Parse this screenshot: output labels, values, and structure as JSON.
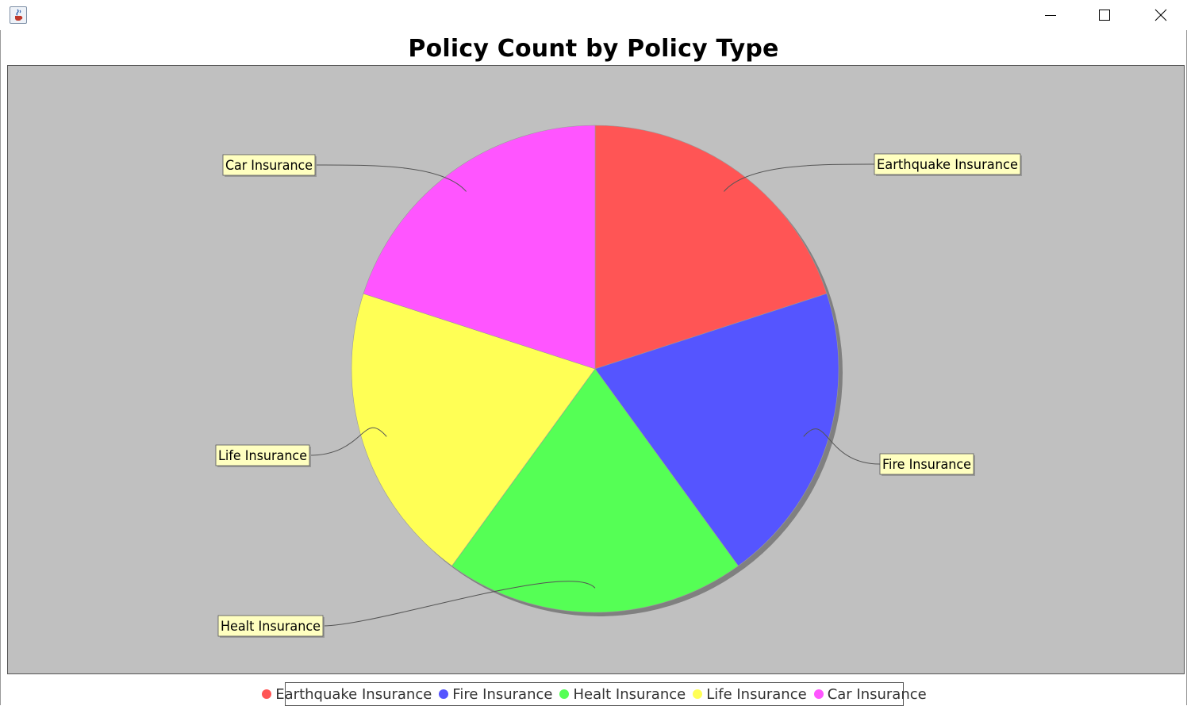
{
  "window": {
    "icons": {
      "app": "java-cup-icon",
      "minimize": "minimize-icon",
      "maximize": "maximize-icon",
      "close": "close-icon"
    }
  },
  "chart_data": {
    "type": "pie",
    "title": "Policy Count by Policy Type",
    "categories": [
      "Earthquake Insurance",
      "Fire Insurance",
      "Healt Insurance",
      "Life Insurance",
      "Car Insurance"
    ],
    "values": [
      1,
      1,
      1,
      1,
      1
    ],
    "colors": [
      "#ff5555",
      "#5555ff",
      "#55ff55",
      "#ffff55",
      "#ff55ff"
    ],
    "legend_position": "bottom",
    "plot_background": "#c0c0c0",
    "label_background": "#ffffc0",
    "shadow": true
  }
}
